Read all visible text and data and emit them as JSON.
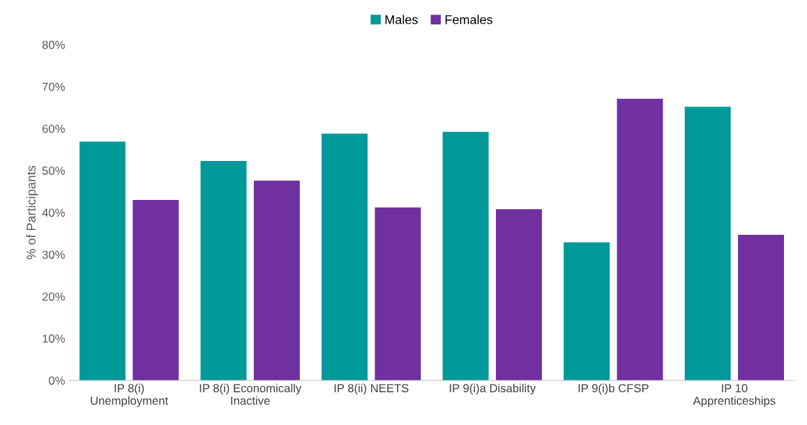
{
  "chart_data": {
    "type": "bar",
    "ylabel": "% of Participants",
    "categories": [
      "IP 8(i)\nUnemployment",
      "IP 8(i) Economically\nInactive",
      "IP 8(ii) NEETS",
      "IP 9(i)a Disability",
      "IP 9(i)b CFSP",
      "IP 10\nApprenticeships"
    ],
    "series": [
      {
        "name": "Males",
        "color": "#009999",
        "values": [
          56.9,
          52.3,
          58.8,
          59.2,
          32.9,
          65.2
        ]
      },
      {
        "name": "Females",
        "color": "#7030a0",
        "values": [
          43.0,
          47.6,
          41.2,
          40.8,
          67.1,
          34.7
        ]
      }
    ],
    "ylim": [
      0,
      80
    ],
    "yticks": [
      {
        "value": 0,
        "label": "0%"
      },
      {
        "value": 10,
        "label": "10%"
      },
      {
        "value": 20,
        "label": "20%"
      },
      {
        "value": 30,
        "label": "30%"
      },
      {
        "value": 40,
        "label": "40%"
      },
      {
        "value": 50,
        "label": "50%"
      },
      {
        "value": 60,
        "label": "60%"
      },
      {
        "value": 70,
        "label": "70%"
      },
      {
        "value": 80,
        "label": "80%"
      }
    ],
    "grid": false,
    "legend": "top"
  }
}
